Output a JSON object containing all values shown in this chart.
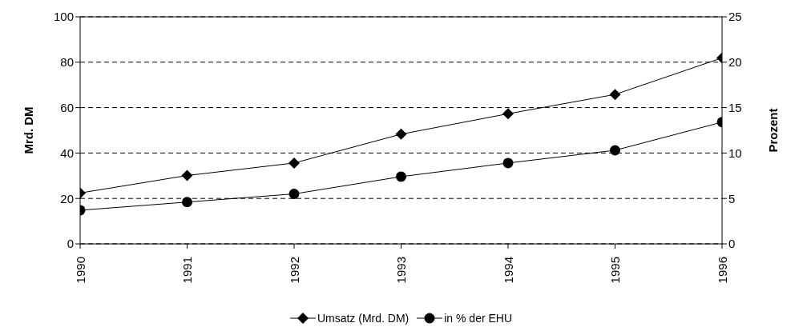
{
  "chart_data": {
    "type": "line",
    "categories": [
      "1990",
      "1991",
      "1992",
      "1993",
      "1994",
      "1995",
      "1996"
    ],
    "series": [
      {
        "name": "Umsatz (Mrd. DM)",
        "color": "#000000",
        "marker": "diamond",
        "values": [
          22.4,
          30.1,
          35.6,
          48.3,
          57.3,
          65.8,
          81.9
        ]
      },
      {
        "name": "in % der EHU",
        "color": "#000000",
        "marker": "circle",
        "axis": "y2",
        "values": [
          3.7,
          4.6,
          5.5,
          7.4,
          8.9,
          10.3,
          13.4
        ]
      }
    ],
    "ylabel": "Mrd. DM",
    "y2label": "Prozent",
    "ylim": [
      0,
      100
    ],
    "yticks": [
      0,
      20,
      40,
      60,
      80,
      100
    ],
    "y2lim": [
      0,
      25
    ],
    "y2ticks": [
      0,
      5,
      10,
      15,
      20,
      25
    ],
    "grid": "y",
    "legend": "bottom",
    "line_style": "solid"
  }
}
